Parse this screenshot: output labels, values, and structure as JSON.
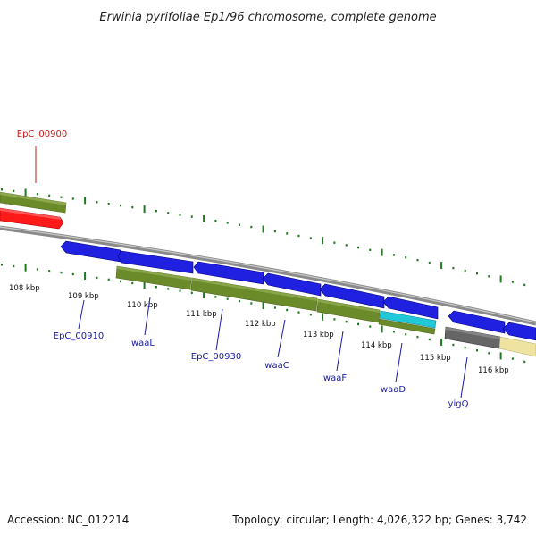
{
  "title": "Erwinia pyrifoliae Ep1/96 chromosome, complete genome",
  "footer": {
    "accession": "Accession: NC_012214",
    "summary": "Topology: circular; Length: 4,026,322 bp; Genes: 3,742"
  },
  "colors": {
    "tick_green": "#1f7a1f",
    "backbone": "#8a8a8a",
    "forward_gene": "#2020e0",
    "reverse_olive": "#6b8a2a",
    "red_gene": "#ff1a1a",
    "cyan_gene": "#20c8d8",
    "gray_gene": "#666666",
    "yellow_gene": "#eee3a0",
    "label_blue": "#1a1aa8",
    "label_red": "#c41a1a"
  },
  "scale": {
    "labels": [
      "108 kbp",
      "109 kbp",
      "110 kbp",
      "111 kbp",
      "112 kbp",
      "113 kbp",
      "114 kbp",
      "115 kbp",
      "116 kbp"
    ],
    "positions_kbp": [
      108,
      109,
      110,
      111,
      112,
      113,
      114,
      115,
      116
    ]
  },
  "gene_labels": [
    {
      "name": "EpC_00900",
      "color": "red"
    },
    {
      "name": "EpC_00910",
      "color": "blue"
    },
    {
      "name": "waaL",
      "color": "blue"
    },
    {
      "name": "EpC_00930",
      "color": "blue"
    },
    {
      "name": "waaC",
      "color": "blue"
    },
    {
      "name": "waaF",
      "color": "blue"
    },
    {
      "name": "waaD",
      "color": "blue"
    },
    {
      "name": "yigQ",
      "color": "blue"
    }
  ]
}
